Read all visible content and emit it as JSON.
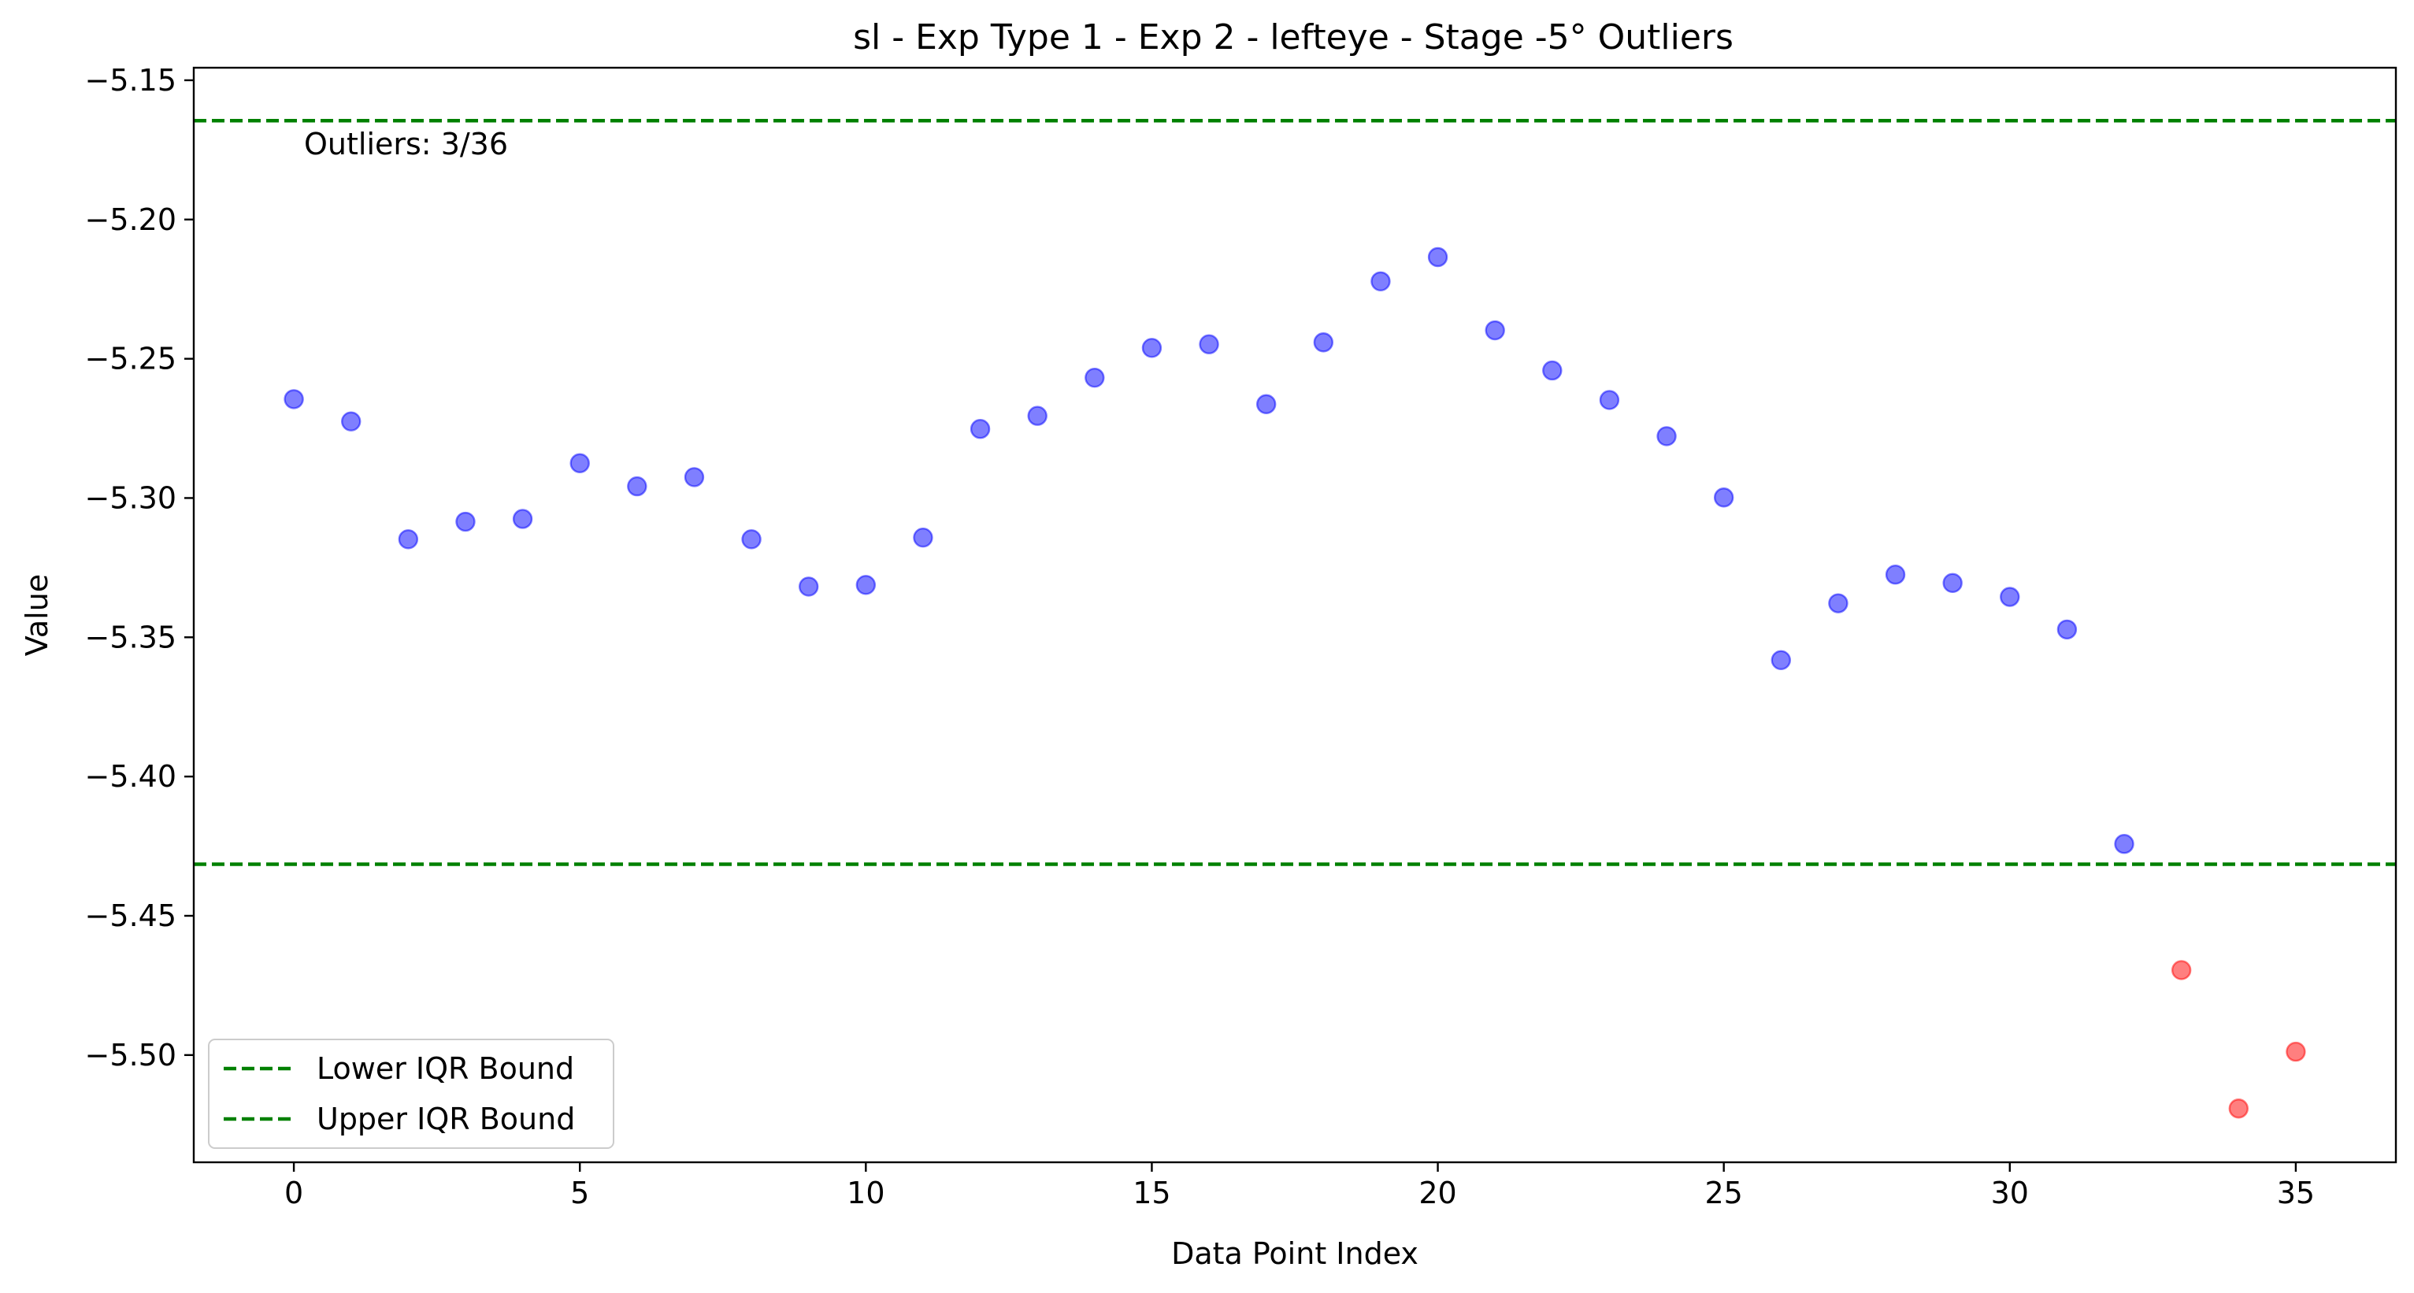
{
  "chart_data": {
    "type": "scatter",
    "title": "sl - Exp Type 1 - Exp 2 - lefteye - Stage -5° Outliers",
    "xlabel": "Data Point Index",
    "ylabel": "Value",
    "xlim": [
      -1.75,
      36.75
    ],
    "ylim": [
      -5.5385,
      -5.1455
    ],
    "x_ticks": [
      0,
      5,
      10,
      15,
      20,
      25,
      30,
      35
    ],
    "x_tick_labels": [
      "0",
      "5",
      "10",
      "15",
      "20",
      "25",
      "30",
      "35"
    ],
    "y_ticks": [
      -5.15,
      -5.2,
      -5.25,
      -5.3,
      -5.35,
      -5.4,
      -5.45,
      -5.5
    ],
    "y_tick_labels": [
      "−5.15",
      "−5.20",
      "−5.25",
      "−5.30",
      "−5.35",
      "−5.40",
      "−5.45",
      "−5.50"
    ],
    "grid": false,
    "legend_position": "lower-left",
    "annotation": "Outliers: 3/36",
    "inliers": {
      "color": "#0000ff",
      "x": [
        0,
        1,
        2,
        3,
        4,
        5,
        6,
        7,
        8,
        9,
        10,
        11,
        12,
        13,
        14,
        15,
        16,
        17,
        18,
        19,
        20,
        21,
        22,
        23,
        24,
        25,
        26,
        27,
        28,
        29,
        30,
        31,
        32
      ],
      "y": [
        -5.2645,
        -5.2725,
        -5.3148,
        -5.3085,
        -5.3075,
        -5.2875,
        -5.2958,
        -5.2925,
        -5.3148,
        -5.3318,
        -5.3312,
        -5.3142,
        -5.2752,
        -5.2705,
        -5.2568,
        -5.2461,
        -5.2448,
        -5.2663,
        -5.2441,
        -5.2222,
        -5.2135,
        -5.2398,
        -5.2542,
        -5.2648,
        -5.2778,
        -5.2998,
        -5.3582,
        -5.3378,
        -5.3275,
        -5.3305,
        -5.3355,
        -5.3472,
        -5.4242
      ]
    },
    "outliers": {
      "color": "#ff0000",
      "x": [
        33,
        34,
        35
      ],
      "y": [
        -5.4695,
        -5.5192,
        -5.4988
      ]
    },
    "bounds": [
      {
        "name": "Lower IQR Bound",
        "value": -5.4315,
        "color": "#008000"
      },
      {
        "name": "Upper IQR Bound",
        "value": -5.1645,
        "color": "#008000"
      }
    ]
  }
}
